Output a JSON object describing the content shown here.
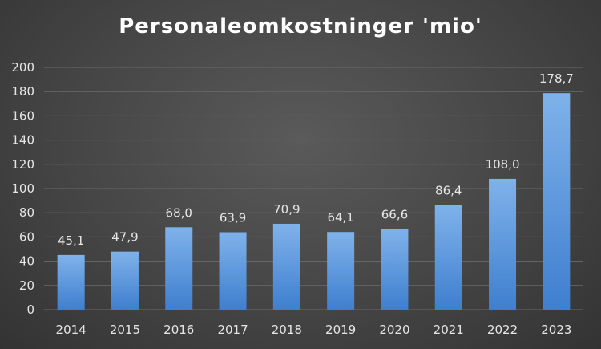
{
  "chart_data": {
    "type": "bar",
    "title": "Personaleomkostninger 'mio'",
    "xlabel": "",
    "ylabel": "",
    "categories": [
      "2014",
      "2015",
      "2016",
      "2017",
      "2018",
      "2019",
      "2020",
      "2021",
      "2022",
      "2023"
    ],
    "values": [
      45.1,
      47.9,
      68.0,
      63.9,
      70.9,
      64.1,
      66.6,
      86.4,
      108.0,
      178.7
    ],
    "data_labels": [
      "45,1",
      "47,9",
      "68,0",
      "63,9",
      "70,9",
      "64,1",
      "66,6",
      "86,4",
      "108,0",
      "178,7"
    ],
    "ylim": [
      0,
      200
    ],
    "yticks": [
      0,
      20,
      40,
      60,
      80,
      100,
      120,
      140,
      160,
      180,
      200
    ],
    "grid": true,
    "legend": "none",
    "colors": {
      "bar_top": "#7fb2ea",
      "bar_bottom": "#3f7fcf",
      "grid": "#6a6a6a",
      "text": "#e6e6e6"
    }
  }
}
